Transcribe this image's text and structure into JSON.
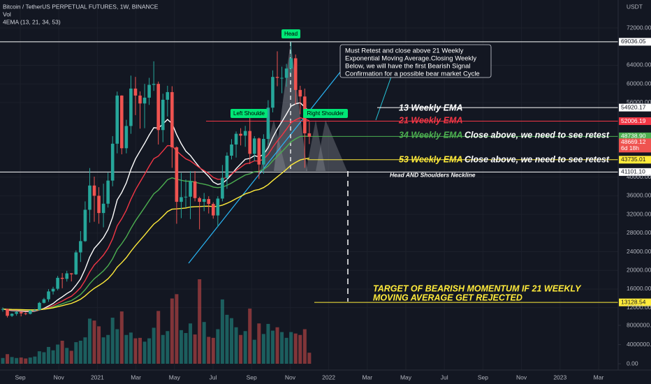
{
  "chart_data": {
    "type": "candlestick",
    "title": "Bitcoin / TetherUS PERPETUAL FUTURES, 1W, BINANCE",
    "volume_label": "Vol",
    "indicator_label": "4EMA (13, 21, 34, 53)",
    "currency": "USDT",
    "open": [
      11650,
      11710,
      10250,
      10680,
      11080,
      10770,
      10670,
      11370,
      11500,
      13030,
      13800,
      15480,
      16050,
      18400,
      18180,
      19360,
      19150,
      23850,
      26270,
      33000,
      38200,
      36000,
      32300,
      34300,
      39260,
      47170,
      57500,
      46200,
      50970,
      59000,
      57500,
      55800,
      57050,
      59800,
      60000,
      50100,
      56600,
      58240,
      46400,
      34700,
      35700,
      35800,
      39100,
      35500,
      34700,
      35300,
      34250,
      31780,
      35400,
      39850,
      44600,
      47000,
      49300,
      48900,
      49900,
      45000,
      48300,
      42700,
      48200,
      54900,
      61500,
      61300,
      61300,
      63300,
      65500,
      58700,
      57300,
      49400
    ],
    "high": [
      12050,
      11780,
      10800,
      11180,
      11180,
      11000,
      11490,
      11720,
      13240,
      14100,
      15970,
      16480,
      18800,
      19420,
      19900,
      19420,
      24290,
      28420,
      34800,
      41950,
      40100,
      37850,
      38600,
      40950,
      48800,
      58350,
      57550,
      52300,
      61780,
      61500,
      58400,
      60000,
      61300,
      64850,
      60500,
      57900,
      59600,
      59500,
      46600,
      40900,
      39500,
      41300,
      41300,
      35800,
      36600,
      35900,
      34600,
      35900,
      42600,
      45300,
      48150,
      49800,
      50500,
      51000,
      52900,
      48800,
      48500,
      49200,
      56500,
      62900,
      67000,
      63700,
      64300,
      69000,
      66300,
      59600,
      59000,
      51900
    ],
    "low": [
      11150,
      9890,
      10000,
      10270,
      10140,
      10400,
      10550,
      11220,
      11400,
      12900,
      13250,
      14810,
      15700,
      16160,
      17600,
      17630,
      19000,
      21800,
      26100,
      30260,
      30420,
      30000,
      29240,
      33480,
      38030,
      45100,
      44900,
      45100,
      49300,
      53300,
      50400,
      50500,
      55500,
      58500,
      47000,
      47500,
      53000,
      42000,
      30000,
      31200,
      33500,
      31000,
      34800,
      28800,
      32700,
      32200,
      31100,
      29300,
      34800,
      37500,
      43800,
      44200,
      46800,
      46500,
      42800,
      43400,
      39600,
      40700,
      47000,
      53900,
      59500,
      58000,
      59400,
      62300,
      55600,
      53500,
      42000,
      47100
    ],
    "close": [
      11710,
      10250,
      10680,
      11080,
      10770,
      10670,
      11370,
      11500,
      13030,
      13800,
      15480,
      16050,
      18400,
      18180,
      19360,
      19150,
      23850,
      26270,
      33000,
      38200,
      36000,
      32300,
      34300,
      39260,
      47170,
      57500,
      46200,
      50970,
      59000,
      57500,
      55800,
      57050,
      59800,
      60000,
      50100,
      56600,
      58240,
      46400,
      34700,
      35700,
      35800,
      39100,
      35500,
      34700,
      35300,
      34250,
      31780,
      35400,
      39850,
      44600,
      47000,
      49300,
      48900,
      49900,
      45000,
      48300,
      42700,
      48200,
      54900,
      61500,
      61300,
      61300,
      63300,
      65500,
      58700,
      57300,
      49400,
      48669.12
    ],
    "volume": [
      1200000,
      2000000,
      1400000,
      1200000,
      1300000,
      1100000,
      1300000,
      1500000,
      2600000,
      2400000,
      3500000,
      2800000,
      4000000,
      4800000,
      3300000,
      2700000,
      4500000,
      4800000,
      5500000,
      9400000,
      9000000,
      7800000,
      5500000,
      6000000,
      9600000,
      7200000,
      10900000,
      6000000,
      6500000,
      5300000,
      5400000,
      4600000,
      5300000,
      7500000,
      11000000,
      6000000,
      6800000,
      13600000,
      14500000,
      7000000,
      6400000,
      8400000,
      6100000,
      17600000,
      8700000,
      5600000,
      5400000,
      7200000,
      13400000,
      10200000,
      9500000,
      7600000,
      6000000,
      6800000,
      11500000,
      5000000,
      8400000,
      6200000,
      8300000,
      6900000,
      7600000,
      6600000,
      5400000,
      6600000,
      6300000,
      6000000,
      7200000,
      2300000
    ],
    "up_color": "#26a69a",
    "down_color": "#ef5350",
    "ema_periods": [
      13,
      21,
      34,
      53
    ],
    "ema_colors": [
      "#ffffff",
      "#f23645",
      "#4caf50",
      "#ffeb3b"
    ],
    "ylim": [
      10000,
      78000
    ],
    "yticks": [
      {
        "value": 12000,
        "label": "12000.00"
      },
      {
        "value": 16000,
        "label": "16000.00"
      },
      {
        "value": 20000,
        "label": "20000.00"
      },
      {
        "value": 24000,
        "label": "24000.00"
      },
      {
        "value": 28000,
        "label": "28000.00"
      },
      {
        "value": 32000,
        "label": "32000.00"
      },
      {
        "value": 36000,
        "label": "36000.00"
      },
      {
        "value": 40000,
        "label": "40000.00"
      },
      {
        "value": 56000,
        "label": "56000.00"
      },
      {
        "value": 60000,
        "label": "60000.00"
      },
      {
        "value": 64000,
        "label": "64000.00"
      },
      {
        "value": 72000,
        "label": "72000.00"
      }
    ],
    "volume_ylim": [
      0,
      20000000
    ],
    "volume_ticks": [
      {
        "value": 0,
        "label": "0.00"
      },
      {
        "value": 4000000,
        "label": "4000000.00"
      },
      {
        "value": 8000000,
        "label": "8000000.00"
      }
    ],
    "x_labels": [
      "Sep",
      "Nov",
      "2021",
      "Mar",
      "May",
      "Jul",
      "Sep",
      "Nov",
      "2022",
      "Mar",
      "May",
      "Jul",
      "Sep",
      "Nov",
      "2023",
      "Mar"
    ],
    "levels": [
      {
        "value": 69036.05,
        "label": "69036.05",
        "color": "#ffffff"
      },
      {
        "value": 54920.17,
        "label": "54920.17",
        "color": "#ffffff"
      },
      {
        "value": 52006.19,
        "label": "52006.19",
        "color": "#f23645"
      },
      {
        "value": 48738.9,
        "label": "48738.90",
        "color": "#4caf50"
      },
      {
        "value": 48669.12,
        "label": "48669.12",
        "color": "#ef5350"
      },
      {
        "value": 43735.01,
        "label": "43735.01",
        "color": "#ffeb3b"
      },
      {
        "value": 41101.1,
        "label": "41101.10",
        "color": "#ffffff"
      },
      {
        "value": 13128.54,
        "label": "13128.54",
        "color": "#ffeb3b"
      }
    ],
    "countdown": "6d 18h",
    "annotations": {
      "head": "Head",
      "left_shoulder": "Left Shoulde",
      "right_shoulder": "Right Shoulder",
      "note": [
        "Must Retest and close above 21 Weekly",
        "Exponential Moving Average.Closing Weekly",
        "Below, we will have the first Bearish Signal",
        "Confirmation for a possible bear market Cycle"
      ],
      "ema13": "13 Weekly EMA",
      "ema21": "21 Weekly EMA",
      "ema34": "34 Weekly EMA",
      "ema53": "53 Weekly EMA",
      "retest_34": "Close above, we need to see retest",
      "retest_53": "Close above, we need to see retest",
      "neckline": "Head AND Shoulders Neckline",
      "target": [
        "TARGET OF BEARISH MOMENTUM IF 21 WEEKLY",
        "MOVING AVERAGE GET REJECTED"
      ]
    }
  }
}
